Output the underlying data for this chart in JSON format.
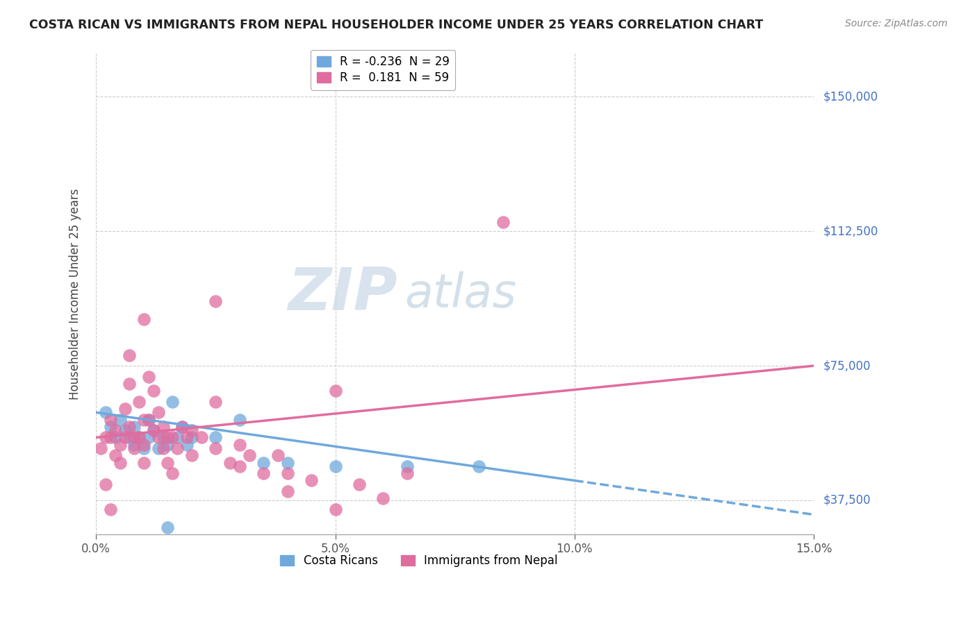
{
  "title": "COSTA RICAN VS IMMIGRANTS FROM NEPAL HOUSEHOLDER INCOME UNDER 25 YEARS CORRELATION CHART",
  "source": "Source: ZipAtlas.com",
  "ylabel": "Householder Income Under 25 years",
  "xlim": [
    0.0,
    0.15
  ],
  "ylim": [
    28000,
    162000
  ],
  "yticks": [
    37500,
    75000,
    112500,
    150000
  ],
  "ytick_labels": [
    "$37,500",
    "$75,000",
    "$112,500",
    "$150,000"
  ],
  "xticks": [
    0.0,
    0.05,
    0.1,
    0.15
  ],
  "xtick_labels": [
    "0.0%",
    "5.0%",
    "10.0%",
    "15.0%"
  ],
  "background_color": "#ffffff",
  "grid_color": "#cccccc",
  "watermark_zip": "ZIP",
  "watermark_atlas": "atlas",
  "blue_color": "#6fa8dc",
  "pink_color": "#e06c9f",
  "blue_R": -0.236,
  "blue_N": 29,
  "pink_R": 0.181,
  "pink_N": 59,
  "blue_points": [
    [
      0.002,
      62000
    ],
    [
      0.003,
      58000
    ],
    [
      0.004,
      55000
    ],
    [
      0.005,
      60000
    ],
    [
      0.006,
      57000
    ],
    [
      0.007,
      55000
    ],
    [
      0.008,
      58000
    ],
    [
      0.008,
      53000
    ],
    [
      0.009,
      55000
    ],
    [
      0.01,
      52000
    ],
    [
      0.011,
      60000
    ],
    [
      0.011,
      55000
    ],
    [
      0.012,
      57000
    ],
    [
      0.013,
      52000
    ],
    [
      0.014,
      55000
    ],
    [
      0.015,
      53000
    ],
    [
      0.016,
      65000
    ],
    [
      0.017,
      55000
    ],
    [
      0.018,
      58000
    ],
    [
      0.019,
      53000
    ],
    [
      0.02,
      55000
    ],
    [
      0.025,
      55000
    ],
    [
      0.03,
      60000
    ],
    [
      0.035,
      48000
    ],
    [
      0.05,
      47000
    ],
    [
      0.065,
      47000
    ],
    [
      0.08,
      47000
    ],
    [
      0.015,
      30000
    ],
    [
      0.04,
      48000
    ]
  ],
  "pink_points": [
    [
      0.001,
      52000
    ],
    [
      0.002,
      55000
    ],
    [
      0.003,
      55000
    ],
    [
      0.003,
      60000
    ],
    [
      0.004,
      50000
    ],
    [
      0.004,
      57000
    ],
    [
      0.005,
      53000
    ],
    [
      0.005,
      48000
    ],
    [
      0.006,
      55000
    ],
    [
      0.006,
      63000
    ],
    [
      0.007,
      58000
    ],
    [
      0.007,
      78000
    ],
    [
      0.007,
      70000
    ],
    [
      0.008,
      55000
    ],
    [
      0.008,
      52000
    ],
    [
      0.009,
      65000
    ],
    [
      0.009,
      55000
    ],
    [
      0.01,
      60000
    ],
    [
      0.01,
      53000
    ],
    [
      0.01,
      48000
    ],
    [
      0.011,
      72000
    ],
    [
      0.011,
      60000
    ],
    [
      0.012,
      68000
    ],
    [
      0.012,
      57000
    ],
    [
      0.013,
      55000
    ],
    [
      0.013,
      62000
    ],
    [
      0.014,
      52000
    ],
    [
      0.014,
      58000
    ],
    [
      0.015,
      55000
    ],
    [
      0.015,
      48000
    ],
    [
      0.016,
      55000
    ],
    [
      0.016,
      45000
    ],
    [
      0.017,
      52000
    ],
    [
      0.018,
      58000
    ],
    [
      0.019,
      55000
    ],
    [
      0.02,
      57000
    ],
    [
      0.02,
      50000
    ],
    [
      0.022,
      55000
    ],
    [
      0.025,
      52000
    ],
    [
      0.025,
      65000
    ],
    [
      0.028,
      48000
    ],
    [
      0.03,
      53000
    ],
    [
      0.03,
      47000
    ],
    [
      0.032,
      50000
    ],
    [
      0.035,
      45000
    ],
    [
      0.038,
      50000
    ],
    [
      0.04,
      45000
    ],
    [
      0.04,
      40000
    ],
    [
      0.045,
      43000
    ],
    [
      0.05,
      35000
    ],
    [
      0.05,
      68000
    ],
    [
      0.055,
      42000
    ],
    [
      0.06,
      38000
    ],
    [
      0.065,
      45000
    ],
    [
      0.085,
      115000
    ],
    [
      0.002,
      42000
    ],
    [
      0.003,
      35000
    ],
    [
      0.01,
      88000
    ],
    [
      0.025,
      93000
    ]
  ]
}
